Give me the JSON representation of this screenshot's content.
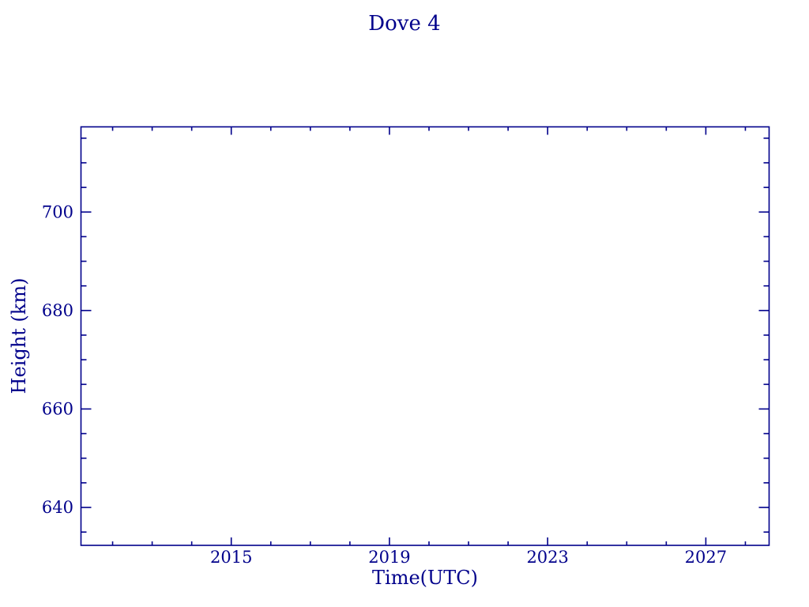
{
  "chart_data": {
    "type": "line",
    "title": "Dove 4",
    "xlabel": "Time(UTC)",
    "ylabel": "Height (km)",
    "xlim": [
      2011.2,
      2028.6
    ],
    "ylim": [
      632.3,
      717.3
    ],
    "x_major_ticks": [
      2015,
      2019,
      2023,
      2027
    ],
    "x_minor_ticks": [
      2012,
      2013,
      2014,
      2016,
      2017,
      2018,
      2020,
      2021,
      2022,
      2024,
      2025,
      2026,
      2028
    ],
    "y_major_ticks": [
      640,
      660,
      680,
      700
    ],
    "y_minor_ticks": [
      635,
      645,
      650,
      655,
      665,
      670,
      675,
      685,
      690,
      695,
      705,
      710,
      715
    ],
    "series": [],
    "grid": false,
    "legend": "none",
    "tick_direction": "in",
    "ticks_mirrored_all_sides": true,
    "axis_color": "#00008b",
    "background_color": "#ffffff"
  }
}
